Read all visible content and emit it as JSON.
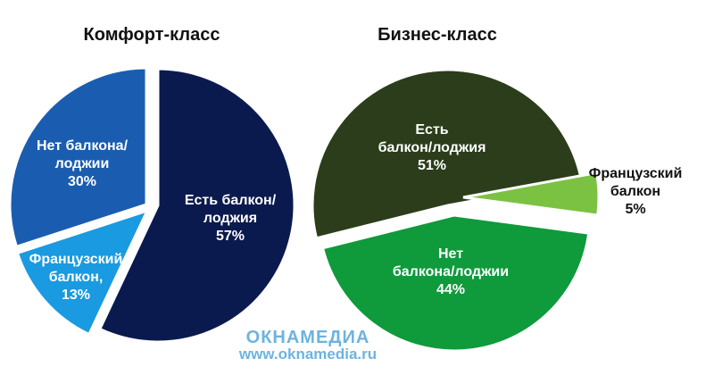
{
  "chart_data": [
    {
      "type": "pie",
      "title": "Комфорт-класс",
      "categories": [
        "Есть балкон/\nлоджия",
        "Французский\nбалкон,",
        "Нет балкона/\nлоджии"
      ],
      "values": [
        57,
        13,
        30
      ],
      "value_labels": [
        "57%",
        "13%",
        "30%"
      ],
      "colors": [
        "#0b1a4e",
        "#1a9ae0",
        "#1a5db0"
      ]
    },
    {
      "type": "pie",
      "title": "Бизнес-класс",
      "categories": [
        "Есть\nбалкон/лоджия",
        "Французский\nбалкон",
        "Нет\nбалкона/лоджии"
      ],
      "values": [
        51,
        5,
        44
      ],
      "value_labels": [
        "51%",
        "5%",
        "44%"
      ],
      "colors": [
        "#2b3d1a",
        "#7cc242",
        "#0f9a3c"
      ]
    }
  ],
  "watermark": {
    "logo": "ОКНАМЕДИА",
    "url": "www.oknamedia.ru"
  }
}
